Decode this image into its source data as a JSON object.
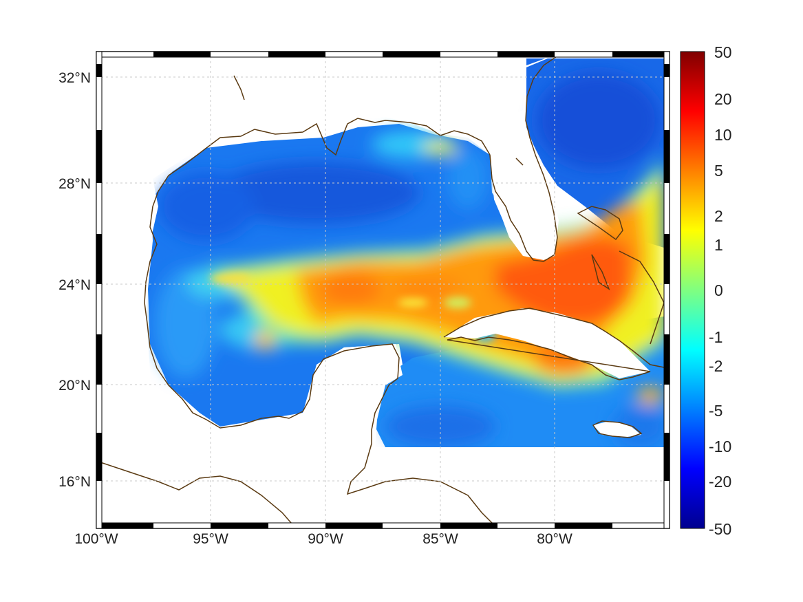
{
  "map": {
    "lat_labels": [
      "32°N",
      "28°N",
      "24°N",
      "20°N",
      "16°N"
    ],
    "lon_labels": [
      "100°W",
      "95°W",
      "90°W",
      "85°W",
      "80°W"
    ],
    "grid": true,
    "coastline_color": "#5a3a12",
    "land_color": "#ffffff"
  },
  "colorbar": {
    "labels": [
      "50",
      "20",
      "10",
      "5",
      "2",
      "1",
      "0",
      "-1",
      "-2",
      "-5",
      "-10",
      "-20",
      "-50"
    ],
    "colormap": "jet",
    "colors": [
      "#00008f",
      "#0000ff",
      "#0080ff",
      "#00ffff",
      "#80ff80",
      "#ffff00",
      "#ff8000",
      "#ff0000",
      "#800000"
    ]
  }
}
